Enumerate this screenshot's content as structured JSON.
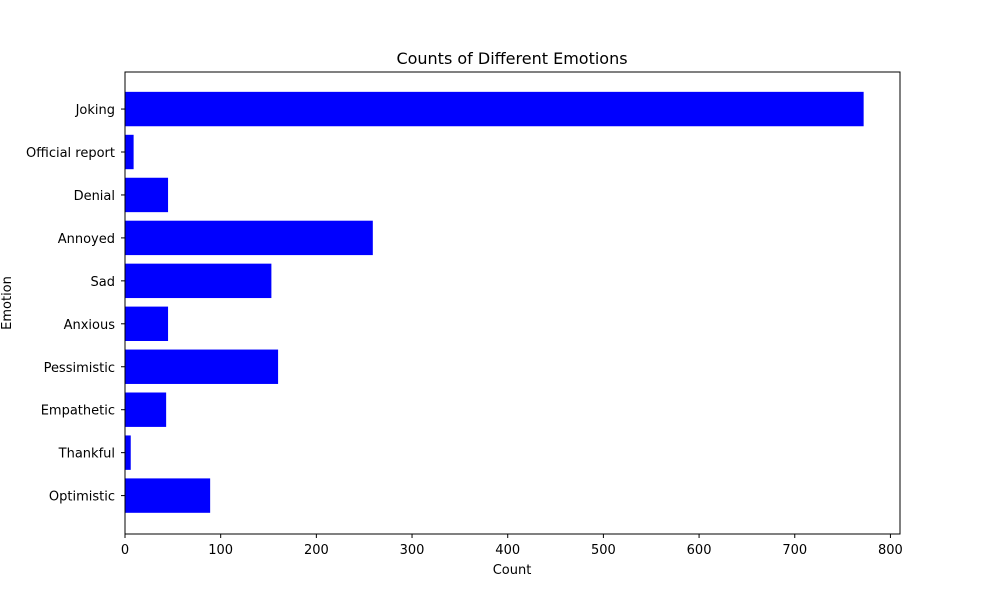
{
  "chart_data": {
    "type": "bar",
    "orientation": "horizontal",
    "title": "Counts of Different Emotions",
    "xlabel": "Count",
    "ylabel": "Emotion",
    "categories": [
      "Optimistic",
      "Thankful",
      "Empathetic",
      "Pessimistic",
      "Anxious",
      "Sad",
      "Annoyed",
      "Denial",
      "Official report",
      "Joking"
    ],
    "values": [
      89,
      6,
      43,
      160,
      45,
      153,
      259,
      45,
      9,
      772
    ],
    "xlim": [
      0,
      810
    ],
    "xticks": [
      0,
      100,
      200,
      300,
      400,
      500,
      600,
      700,
      800
    ],
    "grid": false,
    "bar_color": "#0000ff"
  }
}
